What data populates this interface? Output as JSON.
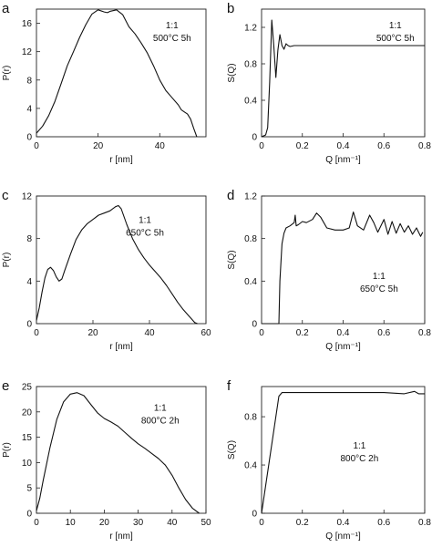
{
  "chart_data": [
    {
      "panel": "a",
      "type": "line",
      "xlabel": "r [nm]",
      "ylabel": "P(r)",
      "xlim": [
        0,
        55
      ],
      "ylim": [
        0,
        18
      ],
      "xticks": [
        0,
        20,
        40
      ],
      "yticks": [
        0,
        4,
        8,
        12,
        16
      ],
      "annotation": [
        "1:1",
        "500°C  5h"
      ],
      "x": [
        0,
        2,
        4,
        6,
        8,
        10,
        12,
        14,
        16,
        18,
        20,
        22,
        23,
        24,
        26,
        28,
        30,
        32,
        34,
        36,
        38,
        40,
        42,
        44,
        46,
        47,
        48,
        49,
        50,
        51,
        52
      ],
      "y": [
        0.5,
        1.5,
        3,
        5,
        7.5,
        10,
        12,
        14,
        15.8,
        17.3,
        17.9,
        17.6,
        17.5,
        17.7,
        17.9,
        17.2,
        15.5,
        14.5,
        13.2,
        11.8,
        10,
        8,
        6.5,
        5.5,
        4.5,
        3.8,
        3.5,
        3.2,
        2.5,
        1.2,
        0
      ]
    },
    {
      "panel": "b",
      "type": "line",
      "xlabel": "Q  [nm⁻¹]",
      "ylabel": "S(Q)",
      "xlim": [
        0,
        0.8
      ],
      "ylim": [
        0,
        1.4
      ],
      "xticks": [
        0,
        0.2,
        0.4,
        0.6,
        0.8
      ],
      "yticks": [
        0,
        0.4,
        0.8,
        1.2
      ],
      "annotation": [
        "1:1",
        "500°C  5h"
      ],
      "x": [
        0,
        0.02,
        0.03,
        0.04,
        0.05,
        0.06,
        0.07,
        0.08,
        0.09,
        0.1,
        0.11,
        0.12,
        0.13,
        0.14,
        0.16,
        0.2,
        0.3,
        0.5,
        0.7,
        0.8
      ],
      "y": [
        0,
        0.02,
        0.1,
        0.6,
        1.28,
        1.0,
        0.65,
        0.95,
        1.12,
        1.0,
        0.96,
        1.02,
        1.0,
        0.99,
        1.0,
        1.0,
        1.0,
        1.0,
        1.0,
        1.0
      ]
    },
    {
      "panel": "c",
      "type": "line",
      "xlabel": "r [nm]",
      "ylabel": "P(r)",
      "xlim": [
        0,
        60
      ],
      "ylim": [
        0,
        12
      ],
      "xticks": [
        0,
        20,
        40,
        60
      ],
      "yticks": [
        0,
        4,
        8,
        12
      ],
      "annotation": [
        "1:1",
        "650°C  5h"
      ],
      "x": [
        0,
        1,
        2,
        3,
        4,
        5,
        6,
        7,
        8,
        9,
        10,
        12,
        14,
        16,
        18,
        20,
        22,
        24,
        26,
        28,
        29,
        30,
        32,
        34,
        36,
        38,
        40,
        42,
        44,
        46,
        48,
        50,
        52,
        54,
        55,
        56,
        57
      ],
      "y": [
        0.3,
        1.5,
        3,
        4.3,
        5.1,
        5.3,
        5.0,
        4.4,
        4.0,
        4.2,
        5.0,
        6.5,
        7.9,
        8.8,
        9.4,
        9.8,
        10.2,
        10.4,
        10.6,
        11.0,
        11.1,
        10.8,
        9.3,
        8.0,
        7.0,
        6.2,
        5.5,
        4.9,
        4.3,
        3.6,
        2.8,
        2.0,
        1.3,
        0.7,
        0.4,
        0.1,
        0
      ]
    },
    {
      "panel": "d",
      "type": "line",
      "xlabel": "Q  [nm⁻¹]",
      "ylabel": "S(Q)",
      "xlim": [
        0,
        0.8
      ],
      "ylim": [
        0,
        1.2
      ],
      "xticks": [
        0,
        0.2,
        0.4,
        0.6,
        0.8
      ],
      "yticks": [
        0,
        0.4,
        0.8,
        1.2
      ],
      "annotation": [
        "1:1",
        "650°C  5h"
      ],
      "x": [
        0,
        0.05,
        0.085,
        0.09,
        0.1,
        0.11,
        0.12,
        0.14,
        0.16,
        0.165,
        0.17,
        0.18,
        0.2,
        0.22,
        0.25,
        0.27,
        0.29,
        0.32,
        0.36,
        0.4,
        0.43,
        0.45,
        0.47,
        0.5,
        0.53,
        0.55,
        0.57,
        0.6,
        0.62,
        0.64,
        0.66,
        0.68,
        0.7,
        0.72,
        0.74,
        0.76,
        0.78,
        0.79
      ],
      "y": [
        0,
        0,
        0,
        0.4,
        0.75,
        0.85,
        0.9,
        0.92,
        0.95,
        1.02,
        0.92,
        0.93,
        0.96,
        0.95,
        0.98,
        1.04,
        1.0,
        0.9,
        0.88,
        0.88,
        0.9,
        1.05,
        0.92,
        0.88,
        1.02,
        0.95,
        0.86,
        0.98,
        0.84,
        0.96,
        0.85,
        0.94,
        0.86,
        0.92,
        0.84,
        0.9,
        0.82,
        0.86
      ]
    },
    {
      "panel": "e",
      "type": "line",
      "xlabel": "r [nm]",
      "ylabel": "P(r)",
      "xlim": [
        0,
        50
      ],
      "ylim": [
        0,
        25
      ],
      "xticks": [
        0,
        10,
        20,
        30,
        40,
        50
      ],
      "yticks": [
        0,
        5,
        10,
        15,
        20,
        25
      ],
      "annotation": [
        "1:1",
        "800°C  2h"
      ],
      "x": [
        0,
        1,
        2,
        4,
        6,
        8,
        10,
        12,
        14,
        16,
        18,
        20,
        22,
        24,
        26,
        28,
        30,
        32,
        34,
        36,
        38,
        40,
        42,
        44,
        46,
        48
      ],
      "y": [
        0.5,
        3,
        6.5,
        13,
        18.5,
        22,
        23.5,
        23.8,
        23.2,
        21.5,
        19.8,
        18.7,
        18.0,
        17.2,
        16.0,
        14.8,
        13.7,
        12.8,
        11.8,
        10.8,
        9.5,
        7.5,
        5.0,
        2.7,
        1.0,
        0
      ]
    },
    {
      "panel": "f",
      "type": "line",
      "xlabel": "Q  [nm⁻¹]",
      "ylabel": "S(Q)",
      "xlim": [
        0,
        0.8
      ],
      "ylim": [
        0,
        1.05
      ],
      "xticks": [
        0,
        0.2,
        0.4,
        0.6,
        0.8
      ],
      "yticks": [
        0,
        0.4,
        0.8
      ],
      "annotation": [
        "1:1",
        "800°C  2h"
      ],
      "x": [
        0,
        0.085,
        0.1,
        0.2,
        0.4,
        0.6,
        0.7,
        0.75,
        0.77,
        0.8
      ],
      "y": [
        0,
        0.97,
        1.0,
        1.0,
        1.0,
        1.0,
        0.99,
        1.01,
        0.99,
        0.99
      ]
    }
  ]
}
